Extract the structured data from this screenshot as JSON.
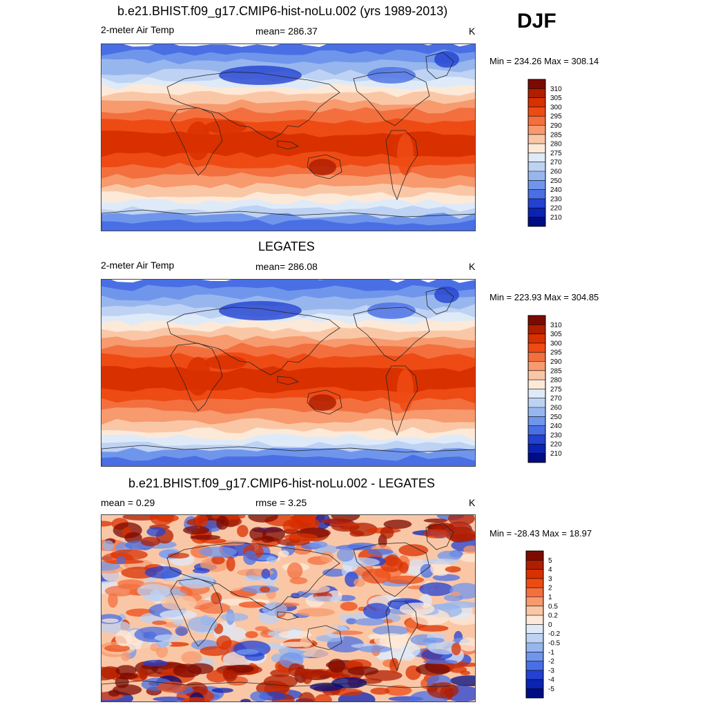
{
  "season": "DJF",
  "panels": [
    {
      "id": "model",
      "title": "b.e21.BHIST.f09_g17.CMIP6-hist-noLu.002 (yrs 1989-2013)",
      "left_label": "2-meter Air Temp",
      "center_label": "mean= 286.37",
      "units": "K",
      "minmax": "Min = 234.26 Max = 308.14",
      "colorbar": [
        "310",
        "305",
        "300",
        "295",
        "290",
        "285",
        "280",
        "275",
        "270",
        "260",
        "250",
        "240",
        "230",
        "220",
        "210"
      ],
      "palette": [
        "#7d0a00",
        "#b01e00",
        "#d93000",
        "#ee4b14",
        "#f36f3e",
        "#f79a6e",
        "#fac7a6",
        "#fde9d8",
        "#dfeaf8",
        "#bed2f3",
        "#98b6ee",
        "#7096ec",
        "#4a6fe4",
        "#2342d1",
        "#0a23b2",
        "#000c83"
      ]
    },
    {
      "id": "obs",
      "title": "LEGATES",
      "left_label": "2-meter Air Temp",
      "center_label": "mean= 286.08",
      "units": "K",
      "minmax": "Min = 223.93 Max = 304.85",
      "colorbar": [
        "310",
        "305",
        "300",
        "295",
        "290",
        "285",
        "280",
        "275",
        "270",
        "260",
        "250",
        "240",
        "230",
        "220",
        "210"
      ],
      "palette": [
        "#7d0a00",
        "#b01e00",
        "#d93000",
        "#ee4b14",
        "#f36f3e",
        "#f79a6e",
        "#fac7a6",
        "#fde9d8",
        "#dfeaf8",
        "#bed2f3",
        "#98b6ee",
        "#7096ec",
        "#4a6fe4",
        "#2342d1",
        "#0a23b2",
        "#000c83"
      ]
    },
    {
      "id": "diff",
      "title": "b.e21.BHIST.f09_g17.CMIP6-hist-noLu.002 - LEGATES",
      "left_label": "mean =   0.29",
      "center_label": "rmse =   3.25",
      "units": "K",
      "minmax": "Min = -28.43 Max =  18.97",
      "colorbar": [
        "5",
        "4",
        "3",
        "2",
        "1",
        "0.5",
        "0.2",
        "0",
        "-0.2",
        "-0.5",
        "-1",
        "-2",
        "-3",
        "-4",
        "-5"
      ],
      "palette": [
        "#7d0a00",
        "#b01e00",
        "#d93000",
        "#ee4b14",
        "#f36f3e",
        "#f79a6e",
        "#fac7a6",
        "#fde9d8",
        "#dfeaf8",
        "#bed2f3",
        "#98b6ee",
        "#7096ec",
        "#4a6fe4",
        "#2342d1",
        "#0a23b2",
        "#000c83"
      ]
    }
  ]
}
